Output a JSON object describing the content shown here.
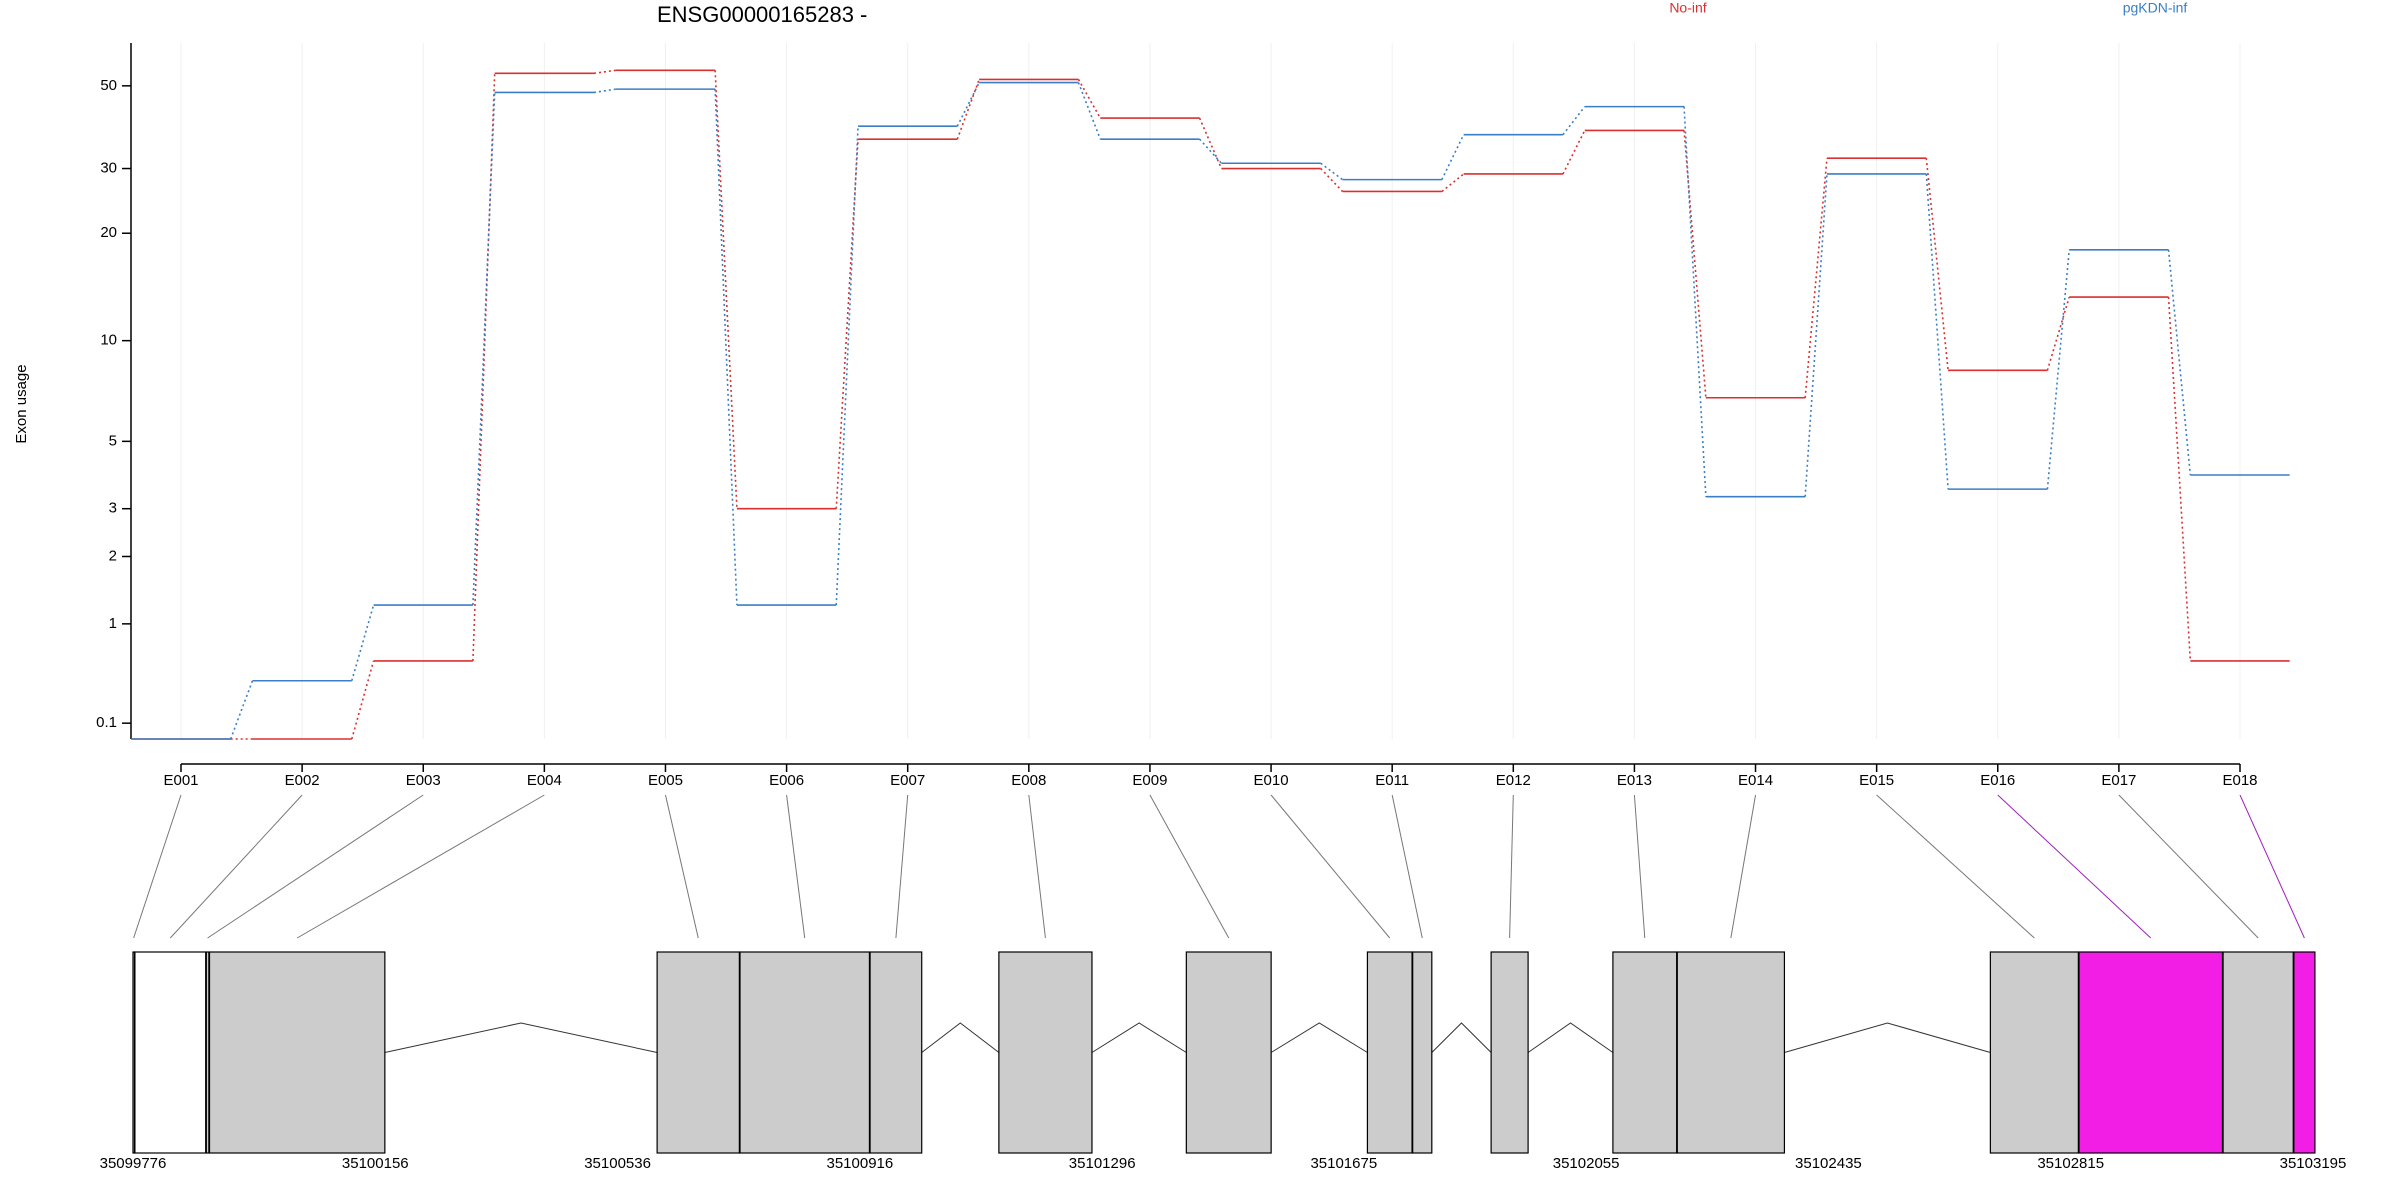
{
  "chart_data": [
    {
      "type": "line",
      "title": "ENSG00000165283 -",
      "y_label": "Exon usage",
      "categories": [
        "E001",
        "E002",
        "E003",
        "E004",
        "E005",
        "E006",
        "E007",
        "E008",
        "E009",
        "E010",
        "E011",
        "E012",
        "E013",
        "E014",
        "E015",
        "E016",
        "E017",
        "E018"
      ],
      "series": [
        {
          "name": "No-inf",
          "color": "#d93030",
          "values": [
            0,
            0,
            0.6,
            54,
            55,
            3.0,
            36,
            52,
            41,
            30,
            26,
            29,
            38,
            6.8,
            32,
            8.2,
            13.3,
            0.6
          ]
        },
        {
          "name": "pgKDN-inf",
          "color": "#3a7fc4",
          "values": [
            0,
            0.42,
            1.24,
            48,
            49,
            1.24,
            39,
            51,
            36,
            31,
            28,
            37,
            44,
            3.3,
            29,
            3.5,
            18,
            3.9
          ]
        }
      ],
      "ylim": [
        0,
        65
      ],
      "yticks": [
        0.1,
        1,
        2,
        3,
        5,
        10,
        20,
        30,
        50
      ],
      "log_scale": true,
      "log_offset": 1,
      "grid": true
    },
    {
      "type": "gene-model",
      "xlim": [
        35099776,
        35103195
      ],
      "xticks": [
        35099776,
        35100156,
        35100536,
        35100916,
        35101296,
        35101675,
        35102055,
        35102435,
        35102815,
        35103195
      ],
      "exons": [
        {
          "start": 35099776,
          "end": 35099778,
          "color": "#cccccc"
        },
        {
          "start": 35099779,
          "end": 35099890,
          "color": "#ffffff"
        },
        {
          "start": 35099891,
          "end": 35099895,
          "color": "#cccccc"
        },
        {
          "start": 35099896,
          "end": 35100171,
          "color": "#cccccc"
        },
        {
          "start": 35100598,
          "end": 35100727,
          "color": "#cccccc"
        },
        {
          "start": 35100728,
          "end": 35100931,
          "color": "#cccccc"
        },
        {
          "start": 35100932,
          "end": 35101013,
          "color": "#cccccc"
        },
        {
          "start": 35101134,
          "end": 35101280,
          "color": "#cccccc"
        },
        {
          "start": 35101428,
          "end": 35101561,
          "color": "#cccccc"
        },
        {
          "start": 35101712,
          "end": 35101782,
          "color": "#cccccc"
        },
        {
          "start": 35101783,
          "end": 35101813,
          "color": "#cccccc"
        },
        {
          "start": 35101906,
          "end": 35101964,
          "color": "#cccccc"
        },
        {
          "start": 35102097,
          "end": 35102197,
          "color": "#cccccc"
        },
        {
          "start": 35102198,
          "end": 35102366,
          "color": "#cccccc"
        },
        {
          "start": 35102689,
          "end": 35102827,
          "color": "#cccccc"
        },
        {
          "start": 35102828,
          "end": 35103053,
          "color": "#f21ee6"
        },
        {
          "start": 35103054,
          "end": 35103164,
          "color": "#cccccc"
        },
        {
          "start": 35103165,
          "end": 35103198,
          "color": "#f21ee6"
        }
      ]
    }
  ]
}
